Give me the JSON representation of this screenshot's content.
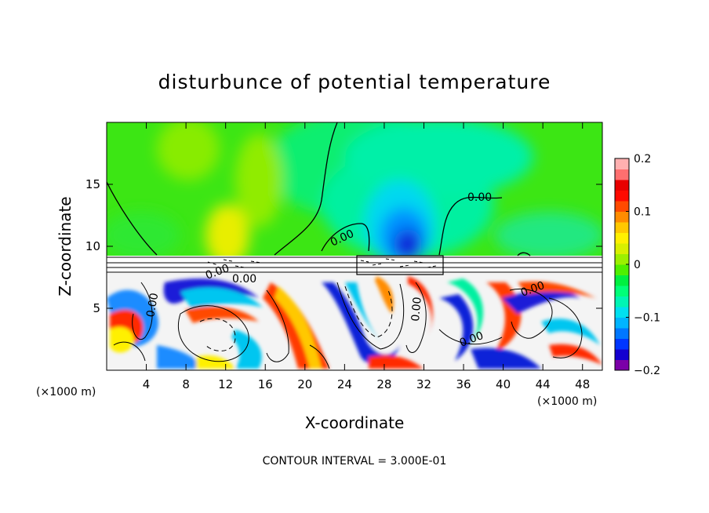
{
  "chart_data": {
    "type": "heatmap",
    "title": "disturbunce of potential temperature",
    "xlabel": "X-coordinate",
    "ylabel": "Z-coordinate",
    "x_unit": "(×1000 m)",
    "z_unit": "(×1000 m)",
    "xlim": [
      0,
      50
    ],
    "ylim": [
      0,
      20
    ],
    "x_ticks": [
      4,
      8,
      12,
      16,
      20,
      24,
      28,
      32,
      36,
      40,
      44,
      48
    ],
    "y_ticks": [
      5,
      10,
      15
    ],
    "contour_interval_text": "CONTOUR INTERVAL = 3.000E-01",
    "contour_labels": [
      "0.00",
      "0.00",
      "0.00",
      "0.00",
      "0.00",
      "0.00",
      "0.00",
      "0.00"
    ],
    "colorbar": {
      "range": [
        -0.2,
        0.2
      ],
      "tick_labels": [
        "0.2",
        "0.1",
        "0",
        "−0.1",
        "−0.2"
      ],
      "tick_values": [
        0.2,
        0.1,
        0,
        -0.1,
        -0.2
      ],
      "colors": [
        "#7b00a8",
        "#1400d0",
        "#0036ff",
        "#0077ff",
        "#00b4ff",
        "#00e0f0",
        "#00f5b4",
        "#00ff78",
        "#00f040",
        "#4ff000",
        "#9cf000",
        "#d8f000",
        "#fff000",
        "#ffc800",
        "#ff8c00",
        "#ff4a00",
        "#ff0a00",
        "#e80000",
        "#ff6f6f",
        "#ffb0b0"
      ]
    }
  }
}
